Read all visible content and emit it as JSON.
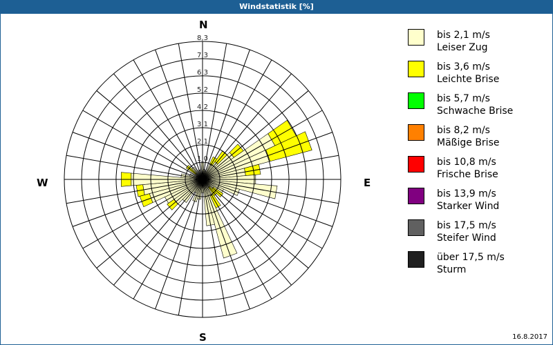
{
  "window": {
    "title": "Windstatistik [%]"
  },
  "compass": {
    "n": "N",
    "e": "E",
    "s": "S",
    "w": "W"
  },
  "footer": {
    "date": "16.8.2017"
  },
  "legend": [
    {
      "range": "bis 2,1 m/s",
      "name": "Leiser Zug",
      "color": "#ffffcc"
    },
    {
      "range": "bis 3,6 m/s",
      "name": "Leichte Brise",
      "color": "#ffff00"
    },
    {
      "range": "bis 5,7 m/s",
      "name": "Schwache Brise",
      "color": "#00ff00"
    },
    {
      "range": "bis 8,2 m/s",
      "name": "Mäßige Brise",
      "color": "#ff8000"
    },
    {
      "range": "bis 10,8 m/s",
      "name": "Frische Brise",
      "color": "#ff0000"
    },
    {
      "range": "bis 13,9 m/s",
      "name": "Starker Wind",
      "color": "#800080"
    },
    {
      "range": "bis 17,5 m/s",
      "name": "Steifer Wind",
      "color": "#606060"
    },
    {
      "range": "über 17,5 m/s",
      "name": "Sturm",
      "color": "#202020"
    }
  ],
  "chart_data": {
    "type": "wind-rose",
    "title": "Windstatistik [%]",
    "unit": "%",
    "radial_ticks": [
      "1,0",
      "2,1",
      "3,1",
      "4,2",
      "5,2",
      "6,3",
      "7,3",
      "8,3"
    ],
    "radial_tick_values": [
      1.04,
      2.08,
      3.11,
      4.15,
      5.19,
      6.23,
      7.26,
      8.3
    ],
    "rmax": 8.3,
    "sector_width_deg": 10,
    "directions_deg": [
      0,
      10,
      20,
      30,
      40,
      50,
      60,
      70,
      80,
      90,
      100,
      110,
      120,
      130,
      140,
      150,
      160,
      170,
      180,
      190,
      200,
      210,
      220,
      230,
      240,
      250,
      260,
      270,
      280,
      290,
      300,
      310,
      320,
      330,
      340,
      350
    ],
    "series": [
      {
        "name": "bis 2,1 m/s (Leiser Zug)",
        "color": "#ffffcc",
        "values": [
          1.0,
          0.6,
          0.5,
          1.0,
          1.3,
          2.3,
          4.8,
          4.2,
          2.6,
          3.2,
          4.5,
          2.3,
          1.4,
          0.8,
          0.6,
          1.1,
          4.9,
          2.8,
          0.8,
          1.2,
          1.4,
          0.9,
          1.7,
          2.1,
          2.5,
          3.3,
          3.6,
          4.3,
          1.3,
          0.8,
          0.4,
          0.5,
          0.9,
          0.2,
          0.6,
          0.3
        ]
      },
      {
        "name": "bis 3,6 m/s (Leichte Brise)",
        "color": "#ffff00",
        "values": [
          0,
          0,
          0,
          0.5,
          0.8,
          0.7,
          1.4,
          2.6,
          0.9,
          0,
          0,
          0,
          0,
          0.7,
          0.6,
          0.8,
          0,
          0,
          0,
          0,
          0,
          0,
          0,
          0.5,
          0,
          0.6,
          0.4,
          0.6,
          0,
          0,
          0,
          0.7,
          0,
          0,
          0,
          0
        ]
      }
    ],
    "legend": [
      "bis 2,1 m/s Leiser Zug",
      "bis 3,6 m/s Leichte Brise",
      "bis 5,7 m/s Schwache Brise",
      "bis 8,2 m/s Mäßige Brise",
      "bis 10,8 m/s Frische Brise",
      "bis 13,9 m/s Starker Wind",
      "bis 17,5 m/s Steifer Wind",
      "über 17,5 m/s Sturm"
    ],
    "legend_position": "right",
    "grid": true
  }
}
